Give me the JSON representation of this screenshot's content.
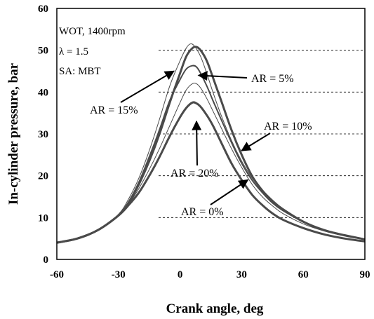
{
  "chart_data": {
    "type": "line",
    "xlabel": "Crank angle, deg",
    "ylabel": "In-cylinder pressure, bar",
    "xlim": [
      -60,
      90
    ],
    "ylim": [
      0,
      60
    ],
    "xticks": [
      -60,
      -30,
      0,
      30,
      60,
      90
    ],
    "yticks": [
      0,
      10,
      20,
      30,
      40,
      50,
      60
    ],
    "grid": "horizontal dashed",
    "annotations": [
      "WOT, 1400rpm",
      "λ = 1.5",
      "SA: MBT"
    ],
    "series": [
      {
        "name": "AR = 0%",
        "stroke_width": 3,
        "x": [
          -60,
          -50,
          -40,
          -30,
          -25,
          -20,
          -15,
          -10,
          -5,
          0,
          3,
          6,
          8,
          10,
          13,
          16,
          20,
          25,
          30,
          35,
          40,
          45,
          50,
          60,
          70,
          80,
          90
        ],
        "y": [
          4.0,
          5.0,
          7.0,
          10.5,
          13.0,
          16.0,
          20.0,
          24.5,
          29.5,
          34.0,
          36.2,
          37.5,
          37.3,
          36.5,
          34.5,
          32.0,
          28.0,
          23.0,
          19.0,
          15.5,
          13.0,
          11.0,
          9.5,
          7.5,
          6.0,
          5.0,
          4.3
        ]
      },
      {
        "name": "AR = 5%",
        "stroke_width": 3,
        "x": [
          -60,
          -50,
          -40,
          -30,
          -25,
          -20,
          -15,
          -10,
          -5,
          0,
          3,
          6,
          8,
          10,
          13,
          16,
          20,
          25,
          30,
          35,
          40,
          45,
          50,
          60,
          70,
          80,
          90
        ],
        "y": [
          4.0,
          5.0,
          7.0,
          10.5,
          13.5,
          18.0,
          23.5,
          30.0,
          37.5,
          44.5,
          48.5,
          50.5,
          50.8,
          50.0,
          47.5,
          43.5,
          38.0,
          31.0,
          25.0,
          20.0,
          16.5,
          14.0,
          12.0,
          9.0,
          7.0,
          5.8,
          4.8
        ]
      },
      {
        "name": "AR = 10%",
        "stroke_width": 1,
        "x": [
          -60,
          -50,
          -40,
          -30,
          -25,
          -20,
          -15,
          -10,
          -5,
          0,
          3,
          6,
          8,
          10,
          13,
          16,
          20,
          25,
          30,
          35,
          40,
          45,
          50,
          60,
          70,
          80,
          90
        ],
        "y": [
          4.0,
          5.0,
          7.0,
          10.5,
          13.2,
          17.0,
          21.5,
          26.5,
          32.0,
          37.5,
          40.5,
          42.0,
          42.0,
          41.0,
          38.5,
          35.5,
          31.5,
          26.5,
          22.0,
          18.0,
          15.0,
          12.8,
          11.0,
          8.5,
          6.8,
          5.6,
          4.7
        ]
      },
      {
        "name": "AR = 15%",
        "stroke_width": 1,
        "x": [
          -60,
          -50,
          -40,
          -30,
          -25,
          -20,
          -15,
          -10,
          -5,
          0,
          3,
          5,
          7,
          10,
          13,
          16,
          20,
          25,
          30,
          35,
          40,
          45,
          50,
          60,
          70,
          80,
          90
        ],
        "y": [
          4.0,
          5.0,
          7.0,
          10.8,
          14.5,
          19.5,
          26.0,
          33.5,
          41.5,
          47.5,
          50.5,
          51.5,
          51.0,
          48.5,
          44.5,
          40.0,
          34.5,
          28.5,
          23.5,
          19.5,
          16.5,
          14.0,
          12.2,
          9.2,
          7.2,
          5.9,
          4.9
        ]
      },
      {
        "name": "AR = 20%",
        "stroke_width": 2,
        "x": [
          -60,
          -50,
          -40,
          -30,
          -25,
          -20,
          -15,
          -10,
          -5,
          0,
          3,
          6,
          8,
          10,
          13,
          16,
          20,
          25,
          30,
          35,
          40,
          45,
          50,
          60,
          70,
          80,
          90
        ],
        "y": [
          4.0,
          5.0,
          7.0,
          10.6,
          13.8,
          18.5,
          24.5,
          31.0,
          38.0,
          43.0,
          45.5,
          46.3,
          46.0,
          44.5,
          41.5,
          38.0,
          33.5,
          28.0,
          23.0,
          19.0,
          16.0,
          13.5,
          11.7,
          9.0,
          7.0,
          5.8,
          4.8
        ]
      }
    ],
    "labels": [
      {
        "text": "AR = 15%",
        "arrow_to": [
          -3,
          45
        ]
      },
      {
        "text": "AR = 5%",
        "arrow_to": [
          9,
          44
        ]
      },
      {
        "text": "AR = 10%",
        "arrow_to": [
          30,
          26
        ]
      },
      {
        "text": "AR = 20%",
        "arrow_to": [
          8,
          33
        ]
      },
      {
        "text": "AR = 0%",
        "arrow_to": [
          33,
          19
        ]
      }
    ]
  }
}
